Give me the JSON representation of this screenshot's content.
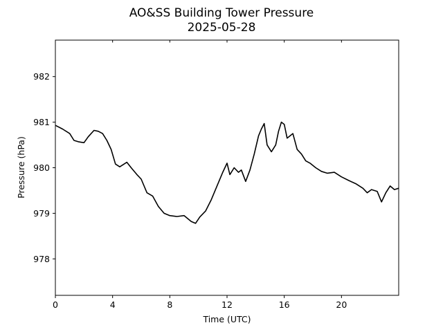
{
  "chart_data": {
    "type": "line",
    "title": "AO&SS Building Tower Pressure",
    "subtitle": "2025-05-28",
    "xlabel": "Time (UTC)",
    "ylabel": "Pressure (hPa)",
    "xlim": [
      0,
      24
    ],
    "ylim": [
      977.2,
      982.8
    ],
    "xticks": [
      0,
      4,
      8,
      12,
      16,
      20
    ],
    "yticks": [
      978,
      979,
      980,
      981,
      982
    ],
    "grid": false,
    "series": [
      {
        "color": "#000000",
        "x": [
          0,
          0.5,
          1,
          1.3,
          1.6,
          2.0,
          2.3,
          2.7,
          3.0,
          3.3,
          3.6,
          3.9,
          4.2,
          4.5,
          5.0,
          5.3,
          5.7,
          6.0,
          6.4,
          6.8,
          7.2,
          7.6,
          8.0,
          8.5,
          9.0,
          9.5,
          9.8,
          10.1,
          10.5,
          10.9,
          11.3,
          11.7,
          12.0,
          12.2,
          12.5,
          12.8,
          13.0,
          13.3,
          13.6,
          13.9,
          14.2,
          14.4,
          14.6,
          14.8,
          15.1,
          15.4,
          15.6,
          15.8,
          16.0,
          16.2,
          16.6,
          16.9,
          17.2,
          17.5,
          17.8,
          18.2,
          18.6,
          19.0,
          19.5,
          20.0,
          20.5,
          21.0,
          21.5,
          21.8,
          22.1,
          22.5,
          22.8,
          23.1,
          23.4,
          23.7,
          24.0
        ],
        "values": [
          980.93,
          980.85,
          980.75,
          980.6,
          980.57,
          980.55,
          980.68,
          980.82,
          980.8,
          980.75,
          980.6,
          980.4,
          980.08,
          980.02,
          980.12,
          980.0,
          979.85,
          979.75,
          979.45,
          979.38,
          979.15,
          979.0,
          978.95,
          978.93,
          978.95,
          978.82,
          978.78,
          978.92,
          979.05,
          979.3,
          979.6,
          979.9,
          980.1,
          979.85,
          980.0,
          979.9,
          979.95,
          979.7,
          979.95,
          980.3,
          980.7,
          980.85,
          980.97,
          980.5,
          980.35,
          980.5,
          980.8,
          981.0,
          980.95,
          980.65,
          980.75,
          980.4,
          980.3,
          980.15,
          980.1,
          980.0,
          979.92,
          979.88,
          979.9,
          979.8,
          979.72,
          979.65,
          979.55,
          979.45,
          979.52,
          979.48,
          979.25,
          979.45,
          979.6,
          979.52,
          979.55
        ]
      }
    ]
  }
}
